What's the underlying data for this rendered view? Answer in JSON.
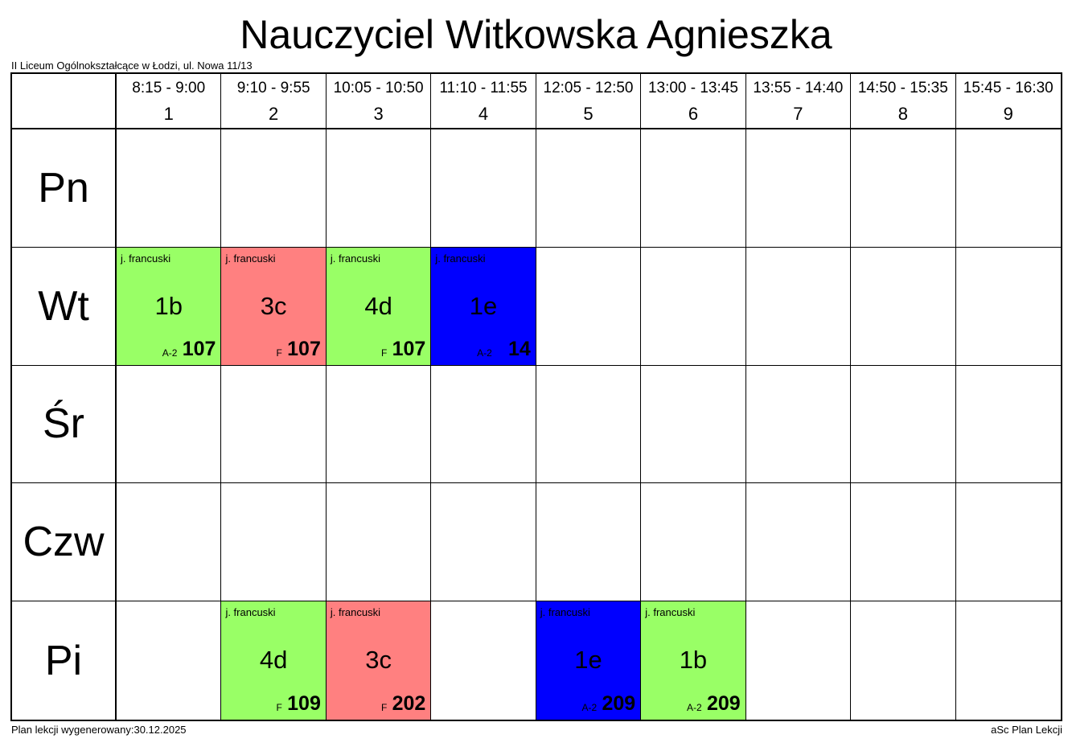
{
  "title": "Nauczyciel Witkowska Agnieszka",
  "school": "II Liceum Ogólnokształcące w Łodzi, ul. Nowa 11/13",
  "footer": {
    "generated": "Plan lekcji wygenerowany:30.12.2025",
    "brand": "aSc Plan Lekcji"
  },
  "colors": {
    "green": "#99ff66",
    "red": "#ff8080",
    "blue": "#0000ff",
    "grid": "#000000"
  },
  "periods": [
    {
      "time": "8:15 - 9:00",
      "num": "1"
    },
    {
      "time": "9:10 - 9:55",
      "num": "2"
    },
    {
      "time": "10:05 - 10:50",
      "num": "3"
    },
    {
      "time": "11:10 - 11:55",
      "num": "4"
    },
    {
      "time": "12:05 - 12:50",
      "num": "5"
    },
    {
      "time": "13:00 - 13:45",
      "num": "6"
    },
    {
      "time": "13:55 - 14:40",
      "num": "7"
    },
    {
      "time": "14:50 - 15:35",
      "num": "8"
    },
    {
      "time": "15:45 - 16:30",
      "num": "9"
    }
  ],
  "days": [
    "Pn",
    "Wt",
    "Śr",
    "Czw",
    "Pi"
  ],
  "lessons": [
    {
      "day": 1,
      "period": 1,
      "subject": "j. francuski",
      "class": "1b",
      "group": "A-2",
      "room": "107",
      "color": "green"
    },
    {
      "day": 1,
      "period": 2,
      "subject": "j. francuski",
      "class": "3c",
      "group": "F",
      "room": "107",
      "color": "red"
    },
    {
      "day": 1,
      "period": 3,
      "subject": "j. francuski",
      "class": "4d",
      "group": "F",
      "room": "107",
      "color": "green"
    },
    {
      "day": 1,
      "period": 4,
      "subject": "j. francuski",
      "class": "1e",
      "group": "A-2",
      "room": "14",
      "color": "blue"
    },
    {
      "day": 4,
      "period": 2,
      "subject": "j. francuski",
      "class": "4d",
      "group": "F",
      "room": "109",
      "color": "green"
    },
    {
      "day": 4,
      "period": 3,
      "subject": "j. francuski",
      "class": "3c",
      "group": "F",
      "room": "202",
      "color": "red"
    },
    {
      "day": 4,
      "period": 5,
      "subject": "j. francuski",
      "class": "1e",
      "group": "A-2",
      "room": "209",
      "color": "blue"
    },
    {
      "day": 4,
      "period": 6,
      "subject": "j. francuski",
      "class": "1b",
      "group": "A-2",
      "room": "209",
      "color": "green"
    }
  ]
}
